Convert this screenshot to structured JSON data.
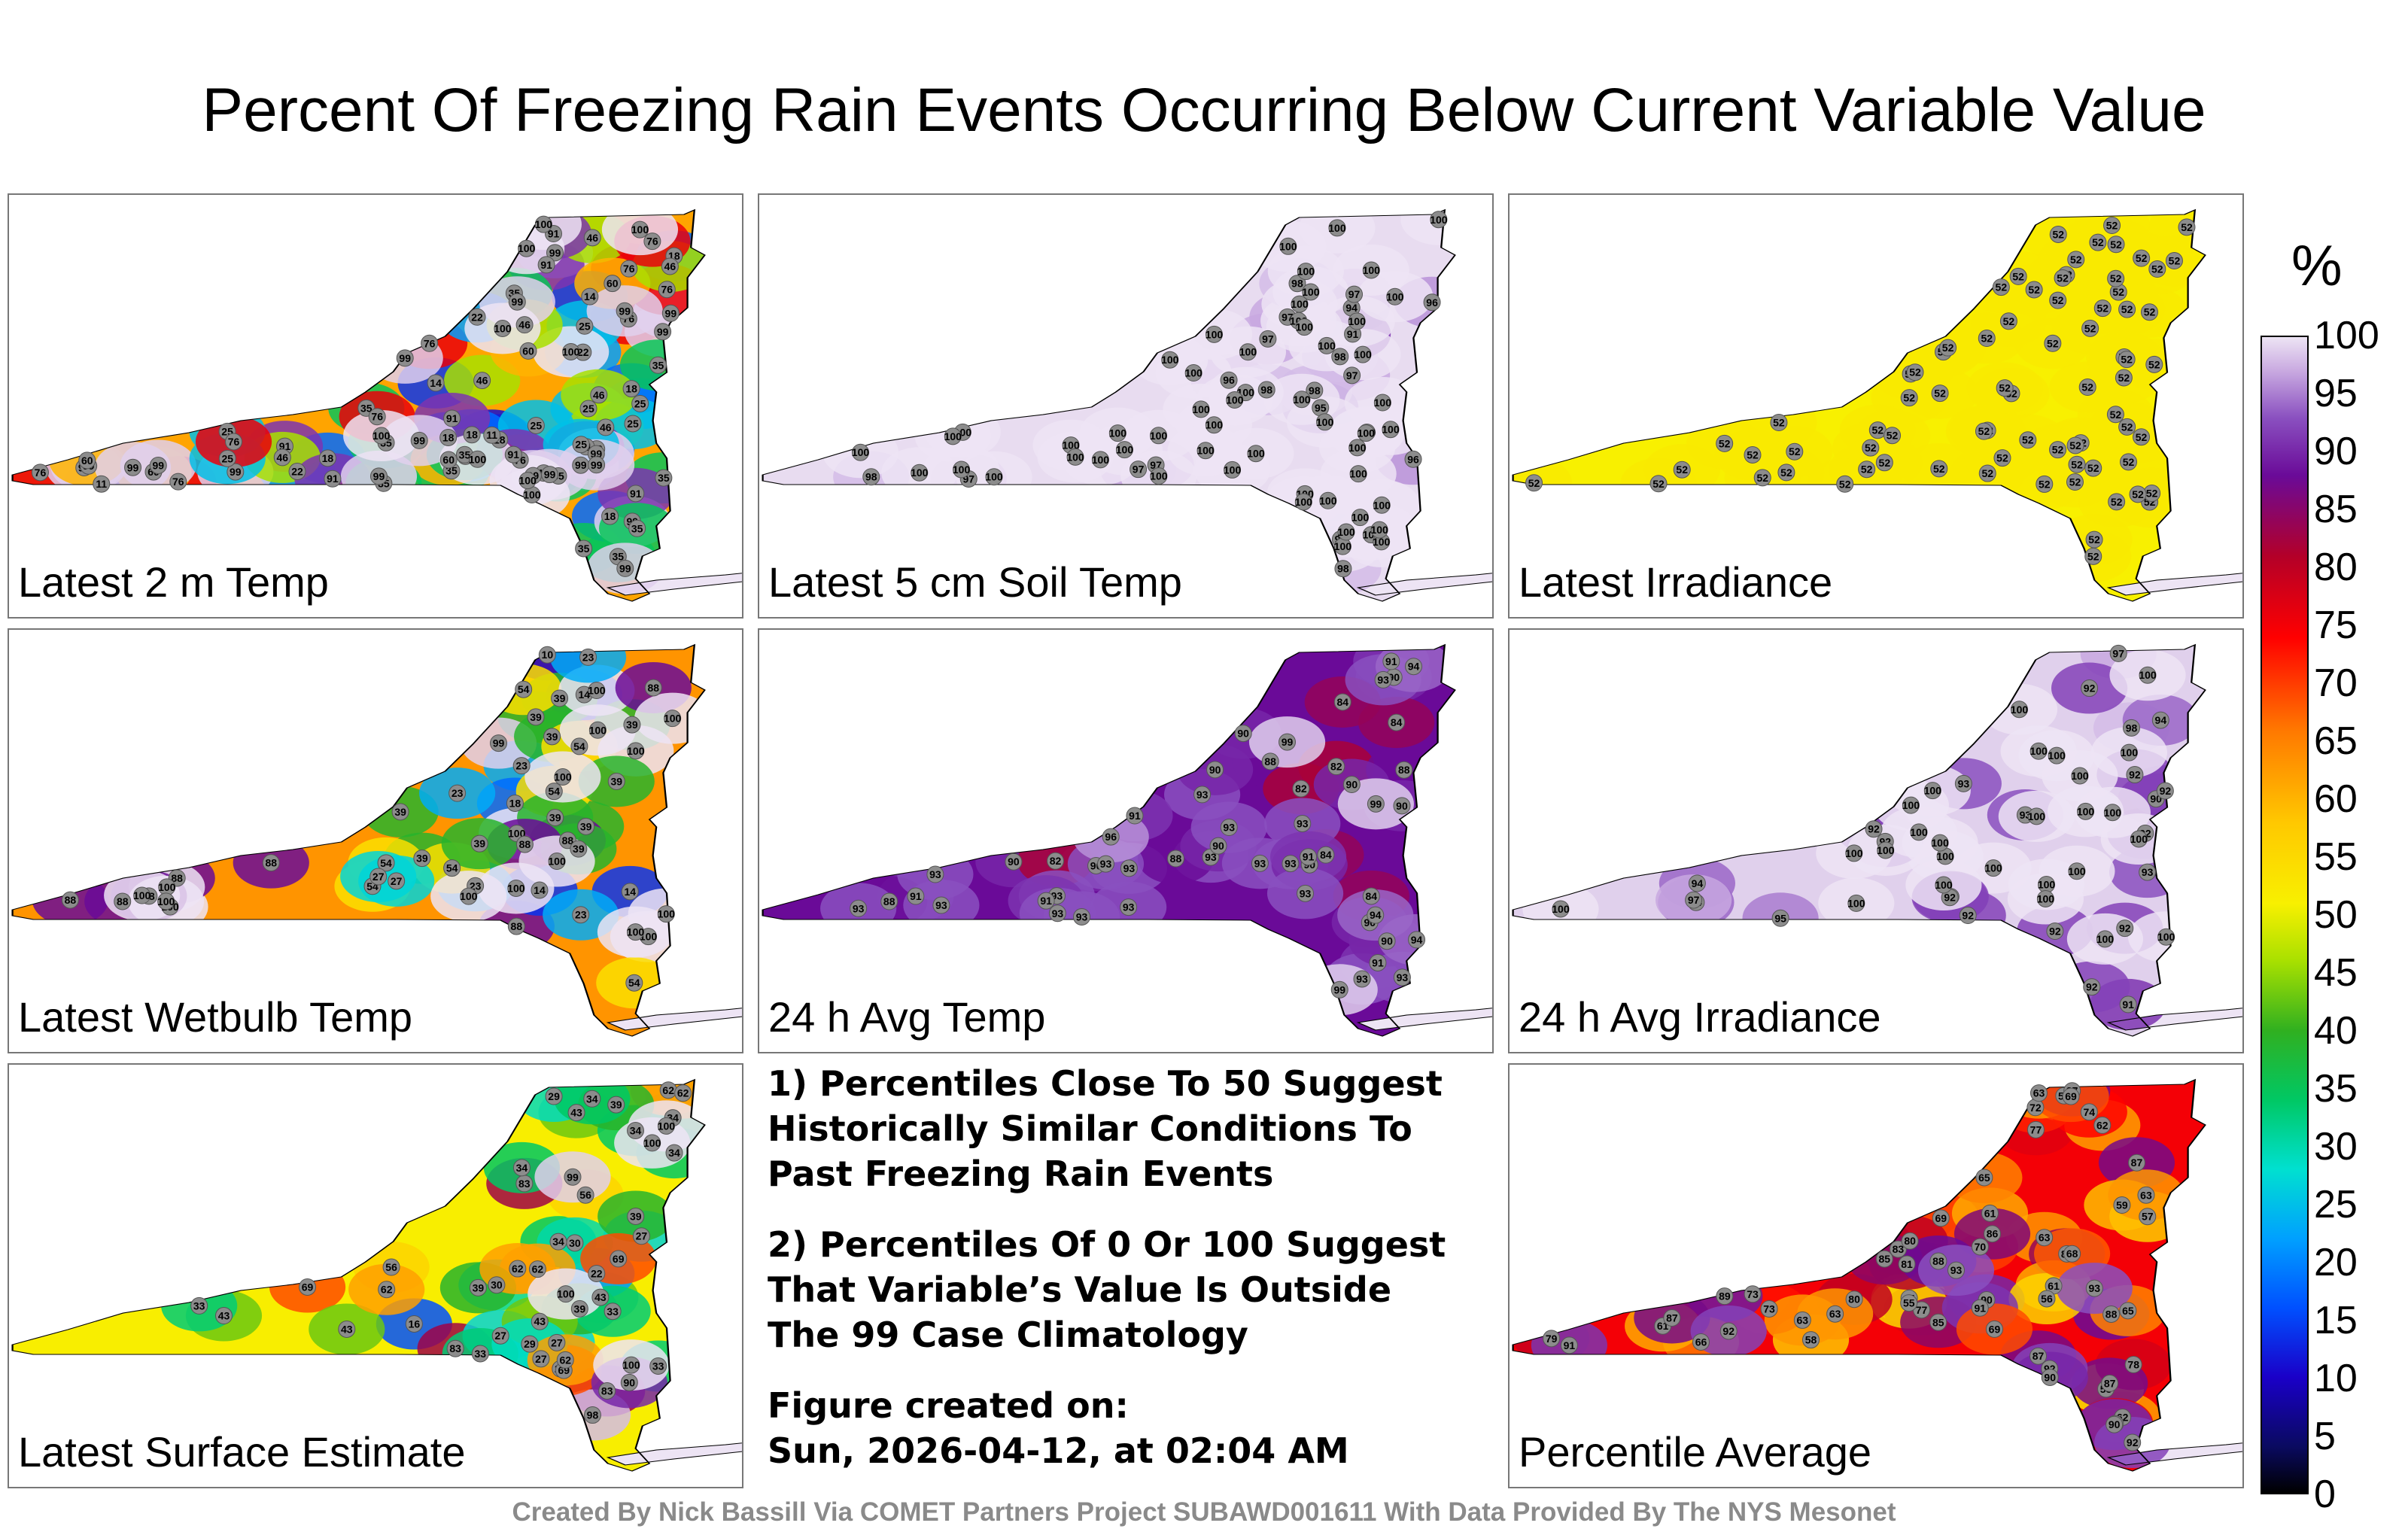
{
  "title": "Percent Of Freezing Rain Events Occurring Below Current Variable Value",
  "colorbar": {
    "unit": "%",
    "ticks": [
      "100",
      "95",
      "90",
      "85",
      "80",
      "75",
      "70",
      "65",
      "60",
      "55",
      "50",
      "45",
      "40",
      "35",
      "30",
      "25",
      "20",
      "15",
      "10",
      "5",
      "0"
    ],
    "range": [
      0,
      100
    ]
  },
  "notes": {
    "n1_l1": "1) Percentiles Close To 50 Suggest",
    "n1_l2": "Historically Similar Conditions To",
    "n1_l3": "Past Freezing Rain Events",
    "n2_l1": "2) Percentiles Of 0 Or 100 Suggest",
    "n2_l2": "That Variable’s Value Is Outside",
    "n2_l3": "The 99 Case Climatology",
    "created_l1": "Figure created on:",
    "created_l2": "Sun, 2026-04-12, at 02:04 AM"
  },
  "credit": "Created By Nick Bassill Via COMET Partners Project SUBAWD001611 With Data Provided By The NYS Mesonet",
  "chart_data": [
    {
      "type": "heatmap",
      "title": "Latest 2 m Temp",
      "background": "mixed",
      "colors": [
        "#f8f000",
        "#30b020",
        "#00c8ff",
        "#b40028",
        "#6a0a98",
        "#ede4f4"
      ],
      "station_values": [
        35,
        76,
        11,
        18,
        18,
        76,
        76,
        18,
        11,
        35,
        99,
        14,
        18,
        25,
        99,
        35,
        22,
        18,
        14,
        18,
        22,
        18,
        25,
        76,
        99,
        18,
        60,
        91,
        25,
        76,
        46,
        99,
        46,
        35,
        60,
        99,
        46,
        76,
        60,
        25,
        35,
        18,
        25,
        25,
        35,
        91,
        99,
        35,
        99,
        60,
        76,
        91,
        99,
        35,
        99,
        91,
        99,
        35,
        22,
        46,
        91,
        60,
        99,
        100,
        76,
        25,
        99,
        91,
        46,
        35,
        99,
        25,
        91,
        35,
        35,
        46,
        99,
        25,
        99,
        99,
        91,
        76,
        46,
        99,
        76,
        99,
        99,
        100,
        99,
        100,
        100,
        100,
        100,
        100,
        100,
        100
      ]
    },
    {
      "type": "heatmap",
      "title": "Latest 5 cm Soil Temp",
      "background": "#e8dcf0",
      "station_values": [
        97,
        96,
        95,
        97,
        96,
        98,
        97,
        95,
        94,
        100,
        98,
        97,
        98,
        97,
        91,
        96,
        98,
        98,
        97,
        97,
        100,
        100,
        100,
        100,
        100,
        100,
        100,
        98,
        100,
        100,
        100,
        100,
        100,
        100,
        100,
        100,
        100,
        100,
        100,
        100,
        100,
        100,
        100,
        100,
        100,
        100,
        100,
        100,
        100,
        100,
        100,
        100,
        100,
        100,
        100,
        100,
        100,
        100,
        100,
        100,
        100,
        100,
        100,
        100,
        100,
        100,
        100,
        100,
        100,
        100,
        100,
        100,
        100,
        100,
        100
      ]
    },
    {
      "type": "heatmap",
      "title": "Latest Irradiance",
      "background": "#f8f000",
      "station_values": [
        52,
        52,
        52,
        52,
        52,
        52,
        52,
        52,
        52,
        52,
        52,
        52,
        52,
        52,
        52,
        52,
        52,
        52,
        52,
        52,
        52,
        52,
        52,
        52,
        52,
        52,
        52,
        52,
        52,
        52,
        52,
        52,
        52,
        52,
        52,
        52,
        52,
        52,
        52,
        52,
        52,
        52,
        52,
        52,
        52,
        52,
        52,
        52,
        52,
        52,
        52,
        52,
        52,
        52,
        52,
        52,
        52,
        52,
        52,
        52,
        52,
        52,
        52,
        52,
        52,
        52,
        52,
        52,
        52,
        52,
        52,
        52,
        52,
        52,
        52
      ]
    },
    {
      "type": "heatmap",
      "title": "Latest Wetbulb Temp",
      "background": "mixed",
      "station_values": [
        39,
        10,
        14,
        88,
        14,
        88,
        39,
        23,
        39,
        18,
        23,
        14,
        23,
        39,
        88,
        39,
        54,
        54,
        100,
        99,
        88,
        39,
        88,
        100,
        54,
        100,
        54,
        39,
        54,
        39,
        100,
        88,
        100,
        27,
        23,
        27,
        54,
        54,
        39,
        100,
        88,
        39,
        88,
        39,
        23,
        100,
        100,
        100,
        88,
        100,
        100,
        100,
        100,
        100,
        100,
        100
      ]
    },
    {
      "type": "heatmap",
      "title": "24 h Avg Temp",
      "background": "#6a0a98",
      "station_values": [
        90,
        88,
        91,
        90,
        82,
        84,
        91,
        82,
        84,
        88,
        90,
        84,
        82,
        84,
        93,
        91,
        93,
        93,
        93,
        93,
        93,
        90,
        90,
        90,
        88,
        88,
        90,
        93,
        91,
        90,
        93,
        93,
        93,
        91,
        90,
        93,
        91,
        90,
        90,
        93,
        93,
        93,
        93,
        93,
        93,
        93,
        93,
        94,
        94,
        96,
        99,
        99,
        94,
        99
      ]
    },
    {
      "type": "heatmap",
      "title": "24 h Avg Irradiance",
      "background": "#e0d0ec",
      "station_values": [
        100,
        98,
        93,
        94,
        92,
        95,
        92,
        93,
        100,
        92,
        92,
        91,
        90,
        92,
        92,
        97,
        92,
        92,
        92,
        92,
        92,
        94,
        92,
        93,
        94,
        100,
        100,
        100,
        100,
        100,
        100,
        100,
        100,
        100,
        100,
        100,
        100,
        97,
        100,
        100,
        100,
        100,
        100,
        100,
        100,
        100,
        100,
        100,
        100,
        100
      ]
    },
    {
      "type": "heatmap",
      "title": "Latest Surface Estimate",
      "background": "mixed",
      "station_values": [
        34,
        43,
        16,
        22,
        27,
        43,
        83,
        27,
        22,
        34,
        56,
        30,
        27,
        30,
        34,
        29,
        33,
        43,
        56,
        62,
        39,
        34,
        27,
        33,
        39,
        62,
        69,
        43,
        39,
        62,
        83,
        33,
        98,
        69,
        62,
        43,
        39,
        33,
        34,
        29,
        83,
        62,
        34,
        62,
        69,
        90,
        99,
        100,
        100,
        100,
        100
      ]
    },
    {
      "type": "heatmap",
      "title": "Percentile Average",
      "background": "mixed",
      "station_values": [
        64,
        77,
        55,
        53,
        77,
        62,
        88,
        63,
        58,
        56,
        57,
        79,
        78,
        73,
        83,
        80,
        84,
        62,
        61,
        70,
        73,
        87,
        90,
        69,
        85,
        74,
        80,
        63,
        56,
        61,
        63,
        81,
        91,
        91,
        86,
        65,
        89,
        59,
        72,
        63,
        68,
        87,
        66,
        69,
        63,
        65,
        87,
        77,
        85,
        87,
        61,
        69,
        90,
        87,
        92,
        93,
        92,
        90,
        88,
        92,
        93
      ]
    }
  ]
}
